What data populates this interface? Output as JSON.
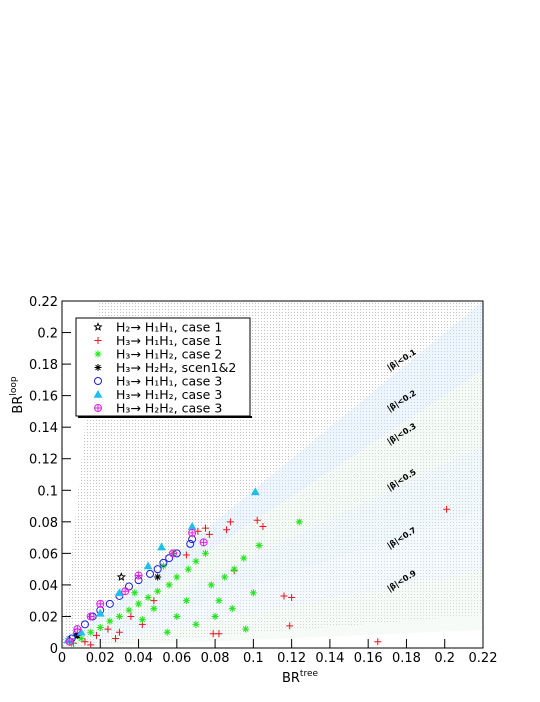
{
  "chart_data": {
    "type": "scatter",
    "xlabel": {
      "text": "BR",
      "sup": "tree"
    },
    "ylabel": {
      "text": "BR",
      "sup": "loop"
    },
    "xlim": [
      0,
      0.22
    ],
    "ylim": [
      0,
      0.22
    ],
    "xticks": [
      0,
      0.02,
      0.04,
      0.06,
      0.08,
      0.1,
      0.12,
      0.14,
      0.16,
      0.18,
      0.2,
      0.22
    ],
    "yticks": [
      0,
      0.02,
      0.04,
      0.06,
      0.08,
      0.1,
      0.12,
      0.14,
      0.16,
      0.18,
      0.2,
      0.22
    ],
    "legend": "top-left",
    "annotations": [
      "|β|<0.1",
      "|β|<0.2",
      "|β|<0.3",
      "|β|<0.5",
      "|β|<0.7",
      "|β|<0.9"
    ],
    "series": [
      {
        "name": "H₂→ H₁H₁, case 1",
        "color": "#000000",
        "marker": "star",
        "x": [
          0.031,
          0.008,
          0.004
        ],
        "y": [
          0.045,
          0.008,
          0.005
        ]
      },
      {
        "name": "H₃→ H₁H₁, case 1",
        "color": "#e8141e",
        "marker": "plus",
        "x": [
          0.201,
          0.102,
          0.105,
          0.088,
          0.086,
          0.116,
          0.12,
          0.09,
          0.065,
          0.071,
          0.075,
          0.077,
          0.119,
          0.079,
          0.082,
          0.165,
          0.012,
          0.018,
          0.024,
          0.03,
          0.036,
          0.042,
          0.015,
          0.028,
          0.048,
          0.006
        ],
        "y": [
          0.088,
          0.081,
          0.077,
          0.08,
          0.075,
          0.033,
          0.032,
          0.049,
          0.059,
          0.074,
          0.076,
          0.072,
          0.014,
          0.009,
          0.009,
          0.004,
          0.004,
          0.008,
          0.012,
          0.01,
          0.02,
          0.015,
          0.002,
          0.006,
          0.03,
          0.003
        ]
      },
      {
        "name": "H₃→ H₁H₂, case 2",
        "color": "#22e61e",
        "marker": "asterisk",
        "x": [
          0.124,
          0.103,
          0.095,
          0.09,
          0.085,
          0.078,
          0.082,
          0.07,
          0.066,
          0.06,
          0.056,
          0.05,
          0.045,
          0.04,
          0.035,
          0.03,
          0.025,
          0.02,
          0.015,
          0.01,
          0.005,
          0.06,
          0.07,
          0.08,
          0.096,
          0.055,
          0.048,
          0.042,
          0.038,
          0.065,
          0.075,
          0.058,
          0.053,
          0.089,
          0.1
        ],
        "y": [
          0.08,
          0.065,
          0.057,
          0.05,
          0.045,
          0.04,
          0.03,
          0.055,
          0.05,
          0.045,
          0.04,
          0.036,
          0.032,
          0.028,
          0.024,
          0.02,
          0.017,
          0.013,
          0.01,
          0.006,
          0.003,
          0.02,
          0.015,
          0.02,
          0.012,
          0.01,
          0.025,
          0.018,
          0.035,
          0.03,
          0.06,
          0.06,
          0.052,
          0.025,
          0.035
        ]
      },
      {
        "name": "H₃→ H₂H₂, scen1&2",
        "color": "#000000",
        "marker": "asterisk",
        "x": [
          0.05,
          0.008
        ],
        "y": [
          0.045,
          0.008
        ]
      },
      {
        "name": "H₃→ H₁H₁, case 3",
        "color": "#1e1edc",
        "marker": "circle",
        "x": [
          0.068,
          0.067,
          0.06,
          0.056,
          0.053,
          0.05,
          0.046,
          0.04,
          0.035,
          0.03,
          0.025,
          0.02,
          0.016,
          0.012,
          0.008,
          0.005
        ],
        "y": [
          0.069,
          0.066,
          0.06,
          0.057,
          0.054,
          0.05,
          0.047,
          0.043,
          0.039,
          0.033,
          0.028,
          0.024,
          0.02,
          0.015,
          0.01,
          0.006
        ]
      },
      {
        "name": "H₃→ H₁H₂, case 3",
        "color": "#1ebeee",
        "marker": "triangle",
        "x": [
          0.101,
          0.068,
          0.052,
          0.045,
          0.03,
          0.02,
          0.01,
          0.003
        ],
        "y": [
          0.099,
          0.077,
          0.064,
          0.052,
          0.035,
          0.022,
          0.01,
          0.005
        ]
      },
      {
        "name": "H₃→ H₂H₂, case 3",
        "color": "#e61ee6",
        "marker": "circleplus",
        "x": [
          0.074,
          0.068,
          0.058,
          0.04,
          0.033,
          0.02,
          0.015,
          0.008,
          0.004
        ],
        "y": [
          0.067,
          0.073,
          0.06,
          0.046,
          0.036,
          0.028,
          0.02,
          0.012,
          0.004
        ]
      }
    ]
  }
}
